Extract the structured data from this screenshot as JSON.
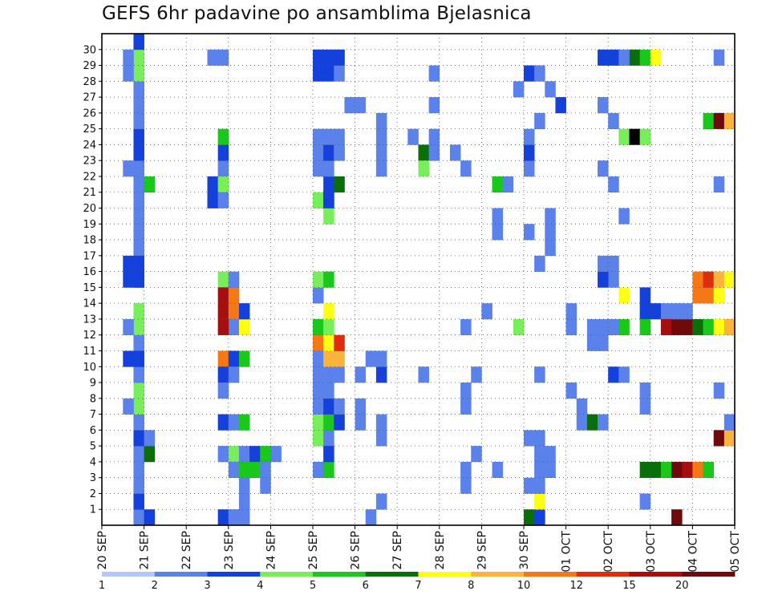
{
  "chart_data": {
    "type": "heatmap",
    "title": "GEFS 6hr padavine po ansamblima Bjelasnica",
    "xlabel": "",
    "ylabel": "",
    "x_ticks": [
      "20 SEP",
      "21 SEP",
      "22 SEP",
      "23 SEP",
      "24 SEP",
      "25 SEP",
      "26 SEP",
      "27 SEP",
      "28 SEP",
      "29 SEP",
      "30 SEP",
      "01 OCT",
      "02 OCT",
      "03 OCT",
      "04 OCT",
      "05 OCT"
    ],
    "y_ticks": [
      "1",
      "2",
      "3",
      "4",
      "5",
      "6",
      "7",
      "8",
      "9",
      "10",
      "11",
      "12",
      "13",
      "14",
      "15",
      "16",
      "17",
      "18",
      "19",
      "20",
      "21",
      "22",
      "23",
      "24",
      "25",
      "26",
      "27",
      "28",
      "29",
      "30"
    ],
    "members": 31,
    "steps": 60,
    "step_hours": 6,
    "grid": true,
    "colorbar": {
      "labels": [
        "1",
        "2",
        "3",
        "4",
        "5",
        "6",
        "7",
        "8",
        "10",
        "12",
        "15",
        "20"
      ],
      "colors": [
        "#b4c8f5",
        "#5a82ea",
        "#1440dc",
        "#78ee5a",
        "#19c81b",
        "#0a6e0a",
        "#ffff14",
        "#fab43c",
        "#f67814",
        "#dc2d0f",
        "#a50f0f",
        "#6e0a0a"
      ]
    },
    "cells": [
      [
        0,
        3,
        1
      ],
      [
        0,
        4,
        2
      ],
      [
        1,
        3,
        2
      ],
      [
        2,
        3,
        1
      ],
      [
        3,
        3,
        1
      ],
      [
        4,
        3,
        1
      ],
      [
        5,
        3,
        2
      ],
      [
        6,
        3,
        1
      ],
      [
        7,
        3,
        3
      ],
      [
        8,
        3,
        3
      ],
      [
        9,
        3,
        1
      ],
      [
        10,
        3,
        2
      ],
      [
        11,
        3,
        1
      ],
      [
        12,
        3,
        3
      ],
      [
        13,
        3,
        3
      ],
      [
        15,
        3,
        2
      ],
      [
        16,
        3,
        3
      ],
      [
        17,
        3,
        1
      ],
      [
        18,
        3,
        1
      ],
      [
        19,
        3,
        1
      ],
      [
        20,
        3,
        1
      ],
      [
        21,
        3,
        1
      ],
      [
        22,
        3,
        1
      ],
      [
        23,
        3,
        2
      ],
      [
        24,
        3,
        2
      ],
      [
        25,
        3,
        1
      ],
      [
        26,
        3,
        1
      ],
      [
        27,
        3,
        1
      ],
      [
        28,
        3,
        3
      ],
      [
        29,
        3,
        3
      ],
      [
        30,
        3,
        2
      ],
      [
        4,
        4,
        5
      ],
      [
        21,
        4,
        4
      ],
      [
        10,
        2,
        2
      ],
      [
        10,
        3,
        2
      ],
      [
        12,
        2,
        1
      ],
      [
        15,
        2,
        2
      ],
      [
        15,
        3,
        2
      ],
      [
        16,
        2,
        2
      ],
      [
        16,
        3,
        2
      ],
      [
        22,
        2,
        1
      ],
      [
        29,
        2,
        1
      ],
      [
        28,
        2,
        1
      ],
      [
        7,
        2,
        1
      ],
      [
        5,
        4,
        1
      ],
      [
        0,
        11,
        2
      ],
      [
        0,
        12,
        1
      ],
      [
        4,
        11,
        1
      ],
      [
        4,
        12,
        3
      ],
      [
        4,
        13,
        1
      ],
      [
        4,
        14,
        2
      ],
      [
        4,
        15,
        4
      ],
      [
        4,
        16,
        1
      ],
      [
        20,
        10,
        2
      ],
      [
        21,
        10,
        2
      ],
      [
        29,
        10,
        1
      ],
      [
        29,
        11,
        1
      ],
      [
        22,
        11,
        1
      ],
      [
        23,
        11,
        2
      ],
      [
        21,
        11,
        3
      ],
      [
        20,
        11,
        1
      ],
      [
        24,
        11,
        4
      ],
      [
        15,
        11,
        3
      ],
      [
        14,
        11,
        10
      ],
      [
        13,
        11,
        10
      ],
      [
        13,
        12,
        8
      ],
      [
        12,
        12,
        1
      ],
      [
        10,
        11,
        8
      ],
      [
        10,
        12,
        2
      ],
      [
        10,
        13,
        4
      ],
      [
        9,
        11,
        2
      ],
      [
        8,
        11,
        1
      ],
      [
        6,
        11,
        2
      ],
      [
        6,
        12,
        1
      ],
      [
        6,
        13,
        4
      ],
      [
        3,
        12,
        1
      ],
      [
        3,
        13,
        4
      ],
      [
        3,
        14,
        4
      ],
      [
        2,
        13,
        1
      ],
      [
        1,
        13,
        1
      ],
      [
        0,
        13,
        1
      ],
      [
        3,
        15,
        1
      ],
      [
        2,
        15,
        1
      ],
      [
        0,
        12,
        1
      ],
      [
        9,
        12,
        1
      ],
      [
        12,
        11,
        10
      ],
      [
        12,
        13,
        6
      ],
      [
        14,
        12,
        8
      ],
      [
        13,
        13,
        2
      ],
      [
        15,
        12,
        1
      ],
      [
        5,
        20,
        3
      ],
      [
        6,
        20,
        3
      ],
      [
        7,
        20,
        1
      ],
      [
        8,
        20,
        1
      ],
      [
        9,
        20,
        1
      ],
      [
        10,
        20,
        1
      ],
      [
        11,
        20,
        8
      ],
      [
        12,
        20,
        4
      ],
      [
        14,
        20,
        1
      ],
      [
        15,
        20,
        3
      ],
      [
        20,
        20,
        3
      ],
      [
        22,
        20,
        1
      ],
      [
        23,
        20,
        1
      ],
      [
        28,
        20,
        2
      ],
      [
        29,
        20,
        2
      ],
      [
        24,
        20,
        1
      ],
      [
        3,
        20,
        1
      ],
      [
        5,
        21,
        1
      ],
      [
        6,
        21,
        4
      ],
      [
        7,
        21,
        2
      ],
      [
        8,
        21,
        1
      ],
      [
        9,
        21,
        1
      ],
      [
        10,
        21,
        7
      ],
      [
        11,
        21,
        6
      ],
      [
        12,
        21,
        3
      ],
      [
        13,
        21,
        6
      ],
      [
        15,
        21,
        4
      ],
      [
        20,
        21,
        2
      ],
      [
        21,
        21,
        2
      ],
      [
        22,
        21,
        1
      ],
      [
        23,
        21,
        2
      ],
      [
        24,
        21,
        1
      ],
      [
        28,
        21,
        2
      ],
      [
        29,
        21,
        2
      ],
      [
        3,
        21,
        4
      ],
      [
        4,
        21,
        2
      ],
      [
        19,
        21,
        3
      ],
      [
        20,
        21,
        2
      ],
      [
        6,
        22,
        2
      ],
      [
        9,
        22,
        1
      ],
      [
        10,
        22,
        7
      ],
      [
        11,
        22,
        9
      ],
      [
        7,
        22,
        1
      ],
      [
        21,
        22,
        5
      ],
      [
        23,
        22,
        1
      ],
      [
        24,
        22,
        1
      ],
      [
        28,
        22,
        1
      ],
      [
        29,
        22,
        2
      ],
      [
        23,
        22,
        1
      ],
      [
        26,
        23,
        1
      ],
      [
        26,
        24,
        1
      ],
      [
        6,
        24,
        1
      ],
      [
        9,
        24,
        1
      ],
      [
        7,
        24,
        1
      ],
      [
        10,
        25,
        1
      ],
      [
        0,
        25,
        1
      ],
      [
        1,
        26,
        1
      ],
      [
        9,
        26,
        2
      ],
      [
        10,
        26,
        1
      ],
      [
        24,
        26,
        1
      ],
      [
        25,
        26,
        1
      ],
      [
        23,
        26,
        1
      ],
      [
        22,
        26,
        1
      ],
      [
        5,
        26,
        1
      ],
      [
        6,
        26,
        1
      ],
      [
        9,
        30,
        1
      ],
      [
        24,
        29,
        1
      ],
      [
        28,
        31,
        1
      ],
      [
        23,
        30,
        5
      ],
      [
        23,
        31,
        1
      ],
      [
        22,
        30,
        3
      ],
      [
        26,
        31,
        1
      ],
      [
        24,
        31,
        1
      ],
      [
        12,
        34,
        1
      ],
      [
        23,
        33,
        1
      ],
      [
        13,
        36,
        1
      ],
      [
        9,
        35,
        1
      ],
      [
        22,
        34,
        1
      ],
      [
        3,
        34,
        1
      ],
      [
        2,
        34,
        1
      ],
      [
        8,
        34,
        1
      ],
      [
        4,
        35,
        1
      ],
      [
        7,
        34,
        1
      ],
      [
        21,
        37,
        4
      ],
      [
        21,
        38,
        1
      ],
      [
        3,
        37,
        1
      ],
      [
        19,
        37,
        1
      ],
      [
        18,
        37,
        1
      ],
      [
        0,
        40,
        5
      ],
      [
        0,
        41,
        2
      ],
      [
        1,
        41,
        6
      ],
      [
        2,
        41,
        1
      ],
      [
        3,
        41,
        1
      ],
      [
        4,
        41,
        1
      ],
      [
        5,
        41,
        1
      ],
      [
        12,
        39,
        3
      ],
      [
        22,
        40,
        1
      ],
      [
        23,
        40,
        2
      ],
      [
        27,
        39,
        1
      ],
      [
        28,
        40,
        2
      ],
      [
        28,
        41,
        1
      ],
      [
        18,
        40,
        1
      ],
      [
        16,
        41,
        1
      ],
      [
        25,
        41,
        1
      ],
      [
        24,
        40,
        1
      ],
      [
        9,
        41,
        1
      ],
      [
        2,
        40,
        1
      ],
      [
        5,
        40,
        1
      ],
      [
        3,
        42,
        1
      ],
      [
        4,
        42,
        1
      ],
      [
        18,
        42,
        1
      ],
      [
        17,
        42,
        1
      ],
      [
        19,
        42,
        1
      ],
      [
        27,
        42,
        1
      ],
      [
        26,
        43,
        2
      ],
      [
        8,
        44,
        1
      ],
      [
        12,
        44,
        1
      ],
      [
        13,
        44,
        1
      ],
      [
        6,
        45,
        1
      ],
      [
        6,
        46,
        5
      ],
      [
        7,
        45,
        1
      ],
      [
        6,
        47,
        1
      ],
      [
        24,
        49,
        3
      ],
      [
        24,
        50,
        12
      ],
      [
        24,
        51,
        3
      ],
      [
        14,
        49,
        6
      ],
      [
        29,
        50,
        5
      ],
      [
        29,
        51,
        4
      ],
      [
        29,
        52,
        6
      ],
      [
        12,
        46,
        1
      ],
      [
        12,
        47,
        1
      ],
      [
        11,
        46,
        1
      ],
      [
        11,
        47,
        1
      ],
      [
        12,
        48,
        1
      ],
      [
        12,
        49,
        4
      ],
      [
        15,
        48,
        1
      ],
      [
        14,
        51,
        2
      ],
      [
        13,
        51,
        2
      ],
      [
        12,
        51,
        4
      ],
      [
        13,
        52,
        2
      ],
      [
        3,
        51,
        5
      ],
      [
        3,
        52,
        5
      ],
      [
        3,
        53,
        4
      ],
      [
        3,
        54,
        11
      ],
      [
        3,
        55,
        10
      ],
      [
        3,
        56,
        8
      ],
      [
        3,
        57,
        4
      ],
      [
        0,
        54,
        11
      ],
      [
        15,
        47,
        2
      ],
      [
        22,
        47,
        1
      ],
      [
        26,
        47,
        1
      ],
      [
        16,
        47,
        1
      ],
      [
        9,
        48,
        2
      ],
      [
        9,
        49,
        1
      ],
      [
        16,
        48,
        1
      ],
      [
        21,
        48,
        1
      ],
      [
        19,
        49,
        1
      ],
      [
        25,
        48,
        1
      ],
      [
        8,
        51,
        1
      ],
      [
        1,
        51,
        1
      ],
      [
        7,
        51,
        1
      ],
      [
        29,
        47,
        2
      ],
      [
        29,
        48,
        2
      ],
      [
        29,
        49,
        1
      ],
      [
        13,
        53,
        1
      ],
      [
        12,
        53,
        10
      ],
      [
        12,
        54,
        11
      ],
      [
        12,
        55,
        11
      ],
      [
        14,
        56,
        8
      ],
      [
        14,
        57,
        8
      ],
      [
        14,
        58,
        6
      ],
      [
        12,
        56,
        5
      ],
      [
        12,
        57,
        4
      ],
      [
        12,
        58,
        6
      ],
      [
        13,
        54,
        1
      ],
      [
        13,
        55,
        1
      ],
      [
        12,
        59,
        7
      ],
      [
        5,
        58,
        11
      ],
      [
        5,
        59,
        7
      ],
      [
        25,
        57,
        4
      ],
      [
        25,
        58,
        11
      ],
      [
        25,
        59,
        7
      ],
      [
        15,
        56,
        8
      ],
      [
        15,
        57,
        9
      ],
      [
        15,
        58,
        7
      ],
      [
        15,
        59,
        6
      ],
      [
        21,
        58,
        1
      ],
      [
        8,
        58,
        1
      ],
      [
        6,
        59,
        1
      ],
      [
        29,
        58,
        1
      ]
    ]
  }
}
